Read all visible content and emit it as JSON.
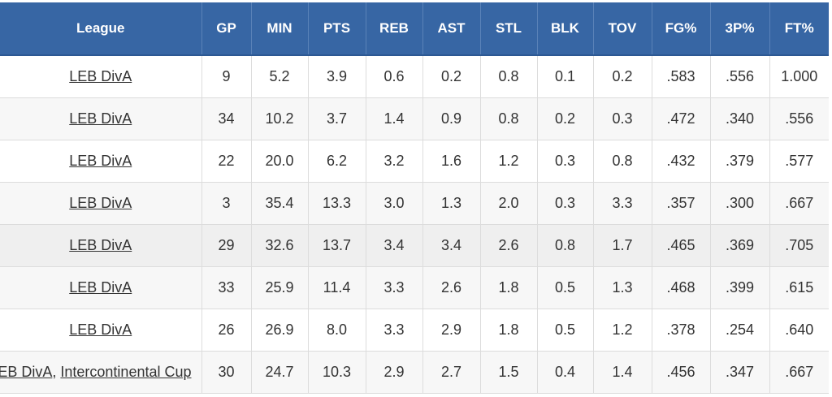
{
  "headers": [
    "League",
    "GP",
    "MIN",
    "PTS",
    "REB",
    "AST",
    "STL",
    "BLK",
    "TOV",
    "FG%",
    "3P%",
    "FT%"
  ],
  "rows": [
    {
      "leagues": [
        "LEB DivA"
      ],
      "stats": [
        "9",
        "5.2",
        "3.9",
        "0.6",
        "0.2",
        "0.8",
        "0.1",
        "0.2",
        ".583",
        ".556",
        "1.000"
      ]
    },
    {
      "leagues": [
        "LEB DivA"
      ],
      "stats": [
        "34",
        "10.2",
        "3.7",
        "1.4",
        "0.9",
        "0.8",
        "0.2",
        "0.3",
        ".472",
        ".340",
        ".556"
      ]
    },
    {
      "leagues": [
        "LEB DivA"
      ],
      "stats": [
        "22",
        "20.0",
        "6.2",
        "3.2",
        "1.6",
        "1.2",
        "0.3",
        "0.8",
        ".432",
        ".379",
        ".577"
      ]
    },
    {
      "leagues": [
        "LEB DivA"
      ],
      "stats": [
        "3",
        "35.4",
        "13.3",
        "3.0",
        "1.3",
        "2.0",
        "0.3",
        "3.3",
        ".357",
        ".300",
        ".667"
      ]
    },
    {
      "leagues": [
        "LEB DivA"
      ],
      "stats": [
        "29",
        "32.6",
        "13.7",
        "3.4",
        "3.4",
        "2.6",
        "0.8",
        "1.7",
        ".465",
        ".369",
        ".705"
      ]
    },
    {
      "leagues": [
        "LEB DivA"
      ],
      "stats": [
        "33",
        "25.9",
        "11.4",
        "3.3",
        "2.6",
        "1.8",
        "0.5",
        "1.3",
        ".468",
        ".399",
        ".615"
      ]
    },
    {
      "leagues": [
        "LEB DivA"
      ],
      "stats": [
        "26",
        "26.9",
        "8.0",
        "3.3",
        "2.9",
        "1.8",
        "0.5",
        "1.2",
        ".378",
        ".254",
        ".640"
      ]
    },
    {
      "leagues": [
        "LEB DivA",
        "Intercontinental Cup"
      ],
      "separator": ", ",
      "stats": [
        "30",
        "24.7",
        "10.3",
        "2.9",
        "2.7",
        "1.5",
        "0.4",
        "1.4",
        ".456",
        ".347",
        ".667"
      ]
    }
  ],
  "colors": {
    "header_bg": "#3766a4",
    "header_text": "#ffffff",
    "row_alt_bg": "#f7f7f7",
    "row_hover_bg": "#efefef"
  }
}
